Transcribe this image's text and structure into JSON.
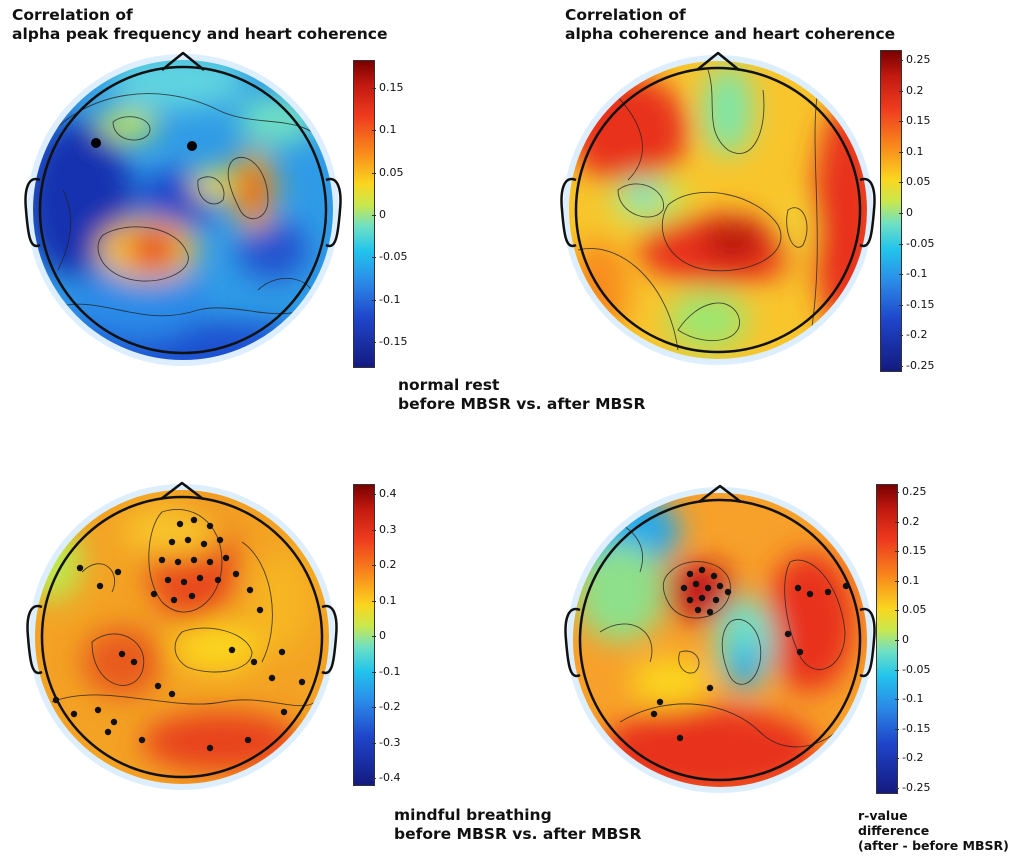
{
  "titles": {
    "top_left": "Correlation of\nalpha peak frequency and heart coherence",
    "top_right": "Correlation of\nalpha coherence and heart coherence"
  },
  "conditions": {
    "normal_rest": "normal rest\nbefore MBSR vs. after MBSR",
    "mindful_breathing": "mindful breathing\nbefore MBSR vs. after MBSR"
  },
  "colorbar_label": "r-value\ndifference\n(after - before MBSR)",
  "colorbars": {
    "top_left": [
      "0.15",
      "0.1",
      "0.05",
      "0",
      "-0.05",
      "-0.1",
      "-0.15"
    ],
    "top_right": [
      "0.25",
      "0.2",
      "0.15",
      "0.1",
      "0.05",
      "0",
      "-0.05",
      "-0.1",
      "-0.15",
      "-0.2",
      "-0.25"
    ],
    "bottom_left": [
      "0.4",
      "0.3",
      "0.2",
      "0.1",
      "0",
      "-0.1",
      "-0.2",
      "-0.3",
      "-0.4"
    ],
    "bottom_right": [
      "0.25",
      "0.2",
      "0.15",
      "0.1",
      "0.05",
      "0",
      "-0.05",
      "-0.1",
      "-0.15",
      "-0.2",
      "-0.25"
    ]
  },
  "colors": {
    "dark_red": "#7a0000",
    "red": "#e8321c",
    "orange": "#f88b1c",
    "yellow": "#fbd51f",
    "cyan": "#22c4ec",
    "blue": "#1f45c9",
    "dark_blue": "#141a80"
  }
}
